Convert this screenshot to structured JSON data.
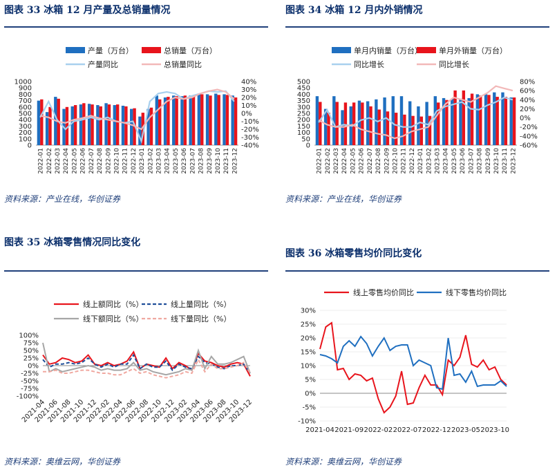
{
  "figures": [
    {
      "title": "图表  33    冰箱 12 月产量及总销量情况",
      "source": "资料来源：产业在线，华创证券"
    },
    {
      "title": "图表  34    冰箱 12 月内外销情况",
      "source": "资料来源：产业在线，华创证券"
    },
    {
      "title": "图表  35    冰箱零售情况同比变化",
      "source": "资料来源：奥维云网，华创证券"
    },
    {
      "title": "图表  36    冰箱零售均价同比变化",
      "source": "资料来源：奥维云网，华创证券"
    }
  ],
  "colors": {
    "blue": "#1f6fc0",
    "red": "#e8141c",
    "lightblue": "#a8d0ee",
    "pink": "#f2b8b8",
    "gray": "#a6a6a6",
    "navy": "#1f4e99",
    "pinkdash": "#f0a8a0"
  },
  "chart_data": [
    {
      "type": "bar",
      "title": "冰箱 12 月产量及总销量情况",
      "categories": [
        "2022-01",
        "2022-02",
        "2022-03",
        "2022-04",
        "2022-05",
        "2022-06",
        "2022-07",
        "2022-08",
        "2022-09",
        "2022-10",
        "2022-11",
        "2022-12",
        "2023-01",
        "2023-02",
        "2023-03",
        "2023-04",
        "2023-05",
        "2023-06",
        "2023-07",
        "2023-08",
        "2023-09",
        "2023-10",
        "2023-11",
        "2023-12"
      ],
      "bars": [
        {
          "name": "产量（万台）",
          "values": [
            700,
            520,
            760,
            570,
            610,
            640,
            650,
            630,
            660,
            630,
            620,
            570,
            450,
            570,
            780,
            750,
            780,
            770,
            780,
            800,
            800,
            810,
            800,
            780
          ],
          "color": "blue"
        },
        {
          "name": "总销量（万台）",
          "values": [
            720,
            600,
            730,
            600,
            630,
            660,
            640,
            610,
            640,
            640,
            610,
            580,
            510,
            590,
            720,
            760,
            770,
            780,
            770,
            800,
            780,
            790,
            790,
            750
          ],
          "color": "red"
        }
      ],
      "lines": [
        {
          "name": "产量同比",
          "values": [
            -5,
            15,
            -8,
            -20,
            -10,
            -8,
            -5,
            -8,
            -5,
            -10,
            -12,
            -10,
            -35,
            15,
            25,
            27,
            25,
            18,
            22,
            25,
            28,
            27,
            28,
            15
          ],
          "color": "lightblue"
        },
        {
          "name": "总销量同比",
          "values": [
            -3,
            -5,
            -10,
            -12,
            -8,
            -6,
            -3,
            -6,
            -8,
            -10,
            -12,
            -15,
            -20,
            -5,
            5,
            15,
            20,
            18,
            20,
            25,
            28,
            30,
            27,
            18
          ],
          "color": "pink"
        }
      ],
      "yleft": {
        "min": 0,
        "max": 1000,
        "ticks": [
          "0",
          "100",
          "200",
          "300",
          "400",
          "500",
          "600",
          "700",
          "800",
          "900",
          "1000"
        ]
      },
      "yright": {
        "min": -40,
        "max": 40,
        "ticks": [
          "-40%",
          "-30%",
          "-20%",
          "-10%",
          "0%",
          "10%",
          "20%",
          "30%",
          "40%"
        ]
      }
    },
    {
      "type": "bar",
      "title": "冰箱 12 月内外销情况",
      "categories": [
        "2022-01",
        "2022-02",
        "2022-03",
        "2022-04",
        "2022-05",
        "2022-06",
        "2022-07",
        "2022-08",
        "2022-09",
        "2022-10",
        "2022-11",
        "2022-12",
        "2023-01",
        "2023-02",
        "2023-03",
        "2023-04",
        "2023-05",
        "2023-06",
        "2023-07",
        "2023-08",
        "2023-09",
        "2023-10",
        "2023-11",
        "2023-12"
      ],
      "bars": [
        {
          "name": "单月内销量（万台）",
          "values": [
            385,
            285,
            385,
            275,
            305,
            350,
            345,
            360,
            375,
            385,
            385,
            345,
            305,
            340,
            385,
            370,
            365,
            365,
            370,
            400,
            400,
            415,
            415,
            375
          ],
          "color": "blue"
        },
        {
          "name": "单月外销量（万台）",
          "values": [
            340,
            255,
            340,
            335,
            335,
            335,
            305,
            280,
            265,
            255,
            240,
            230,
            225,
            230,
            335,
            355,
            430,
            430,
            405,
            390,
            395,
            380,
            380,
            375
          ],
          "color": "red"
        }
      ],
      "lines": [
        {
          "name": "同比增长",
          "values": [
            -10,
            18,
            -20,
            -15,
            -18,
            -5,
            0,
            -8,
            0,
            -15,
            -20,
            -20,
            -10,
            -15,
            15,
            25,
            30,
            35,
            20,
            18,
            28,
            35,
            45,
            40
          ],
          "color": "lightblue"
        },
        {
          "name": "同比增长",
          "values": [
            -5,
            -15,
            -20,
            -20,
            -15,
            -25,
            -30,
            -35,
            -38,
            -45,
            -40,
            -30,
            -25,
            -20,
            5,
            30,
            45,
            40,
            35,
            45,
            55,
            70,
            65,
            60
          ],
          "color": "pink"
        }
      ],
      "yleft": {
        "min": 0,
        "max": 500,
        "ticks": [
          "0",
          "50",
          "100",
          "150",
          "200",
          "250",
          "300",
          "350",
          "400",
          "450",
          "500"
        ]
      },
      "yright": {
        "min": -60,
        "max": 80,
        "ticks": [
          "-60%",
          "-40%",
          "-20%",
          "0%",
          "20%",
          "40%",
          "60%",
          "80%"
        ]
      }
    },
    {
      "type": "line",
      "title": "冰箱零售情况同比变化",
      "x": [
        "2021-04",
        "2021-05",
        "2021-06",
        "2021-07",
        "2021-08",
        "2021-09",
        "2021-10",
        "2021-11",
        "2021-12",
        "2022-01",
        "2022-02",
        "2022-03",
        "2022-04",
        "2022-05",
        "2022-06",
        "2022-07",
        "2022-08",
        "2022-09",
        "2022-10",
        "2022-11",
        "2022-12",
        "2023-01",
        "2023-02",
        "2023-03",
        "2023-04",
        "2023-05",
        "2023-06",
        "2023-07",
        "2023-08",
        "2023-09",
        "2023-10",
        "2023-11",
        "2023-12"
      ],
      "xticks": [
        "2021-04",
        "2021-06",
        "2021-08",
        "2021-10",
        "2021-12",
        "2022-02",
        "2022-04",
        "2022-06",
        "2022-08",
        "2022-10",
        "2022-12",
        "2023-02",
        "2023-04",
        "2023-06",
        "2023-08",
        "2023-10",
        "2023-12"
      ],
      "series": [
        {
          "name": "线上额同比（%）",
          "values": [
            35,
            5,
            10,
            25,
            20,
            10,
            15,
            35,
            5,
            0,
            10,
            0,
            5,
            15,
            45,
            -10,
            5,
            0,
            -5,
            25,
            -10,
            10,
            0,
            -15,
            40,
            15,
            10,
            0,
            -5,
            5,
            10,
            5,
            -35
          ],
          "color": "red",
          "dash": false
        },
        {
          "name": "线上量同比（%）",
          "values": [
            20,
            -5,
            5,
            5,
            10,
            5,
            10,
            25,
            5,
            -5,
            5,
            -5,
            5,
            5,
            35,
            -10,
            5,
            -5,
            -5,
            15,
            -15,
            5,
            -5,
            -10,
            30,
            10,
            5,
            -5,
            -10,
            0,
            0,
            5,
            -25
          ],
          "color": "navy",
          "dash": true
        },
        {
          "name": "线下额同比（%）",
          "values": [
            75,
            -20,
            -10,
            -20,
            -15,
            -10,
            -5,
            0,
            -5,
            -15,
            -10,
            -15,
            -15,
            -10,
            10,
            -15,
            -10,
            -20,
            -25,
            -30,
            -25,
            -20,
            -10,
            -15,
            50,
            -10,
            30,
            5,
            5,
            10,
            20,
            30,
            -25
          ],
          "color": "gray",
          "dash": false
        },
        {
          "name": "线下量同比（%）",
          "values": [
            -20,
            -20,
            -15,
            -25,
            -25,
            -20,
            -15,
            -15,
            -20,
            -25,
            -25,
            -30,
            -30,
            -20,
            -10,
            -25,
            -20,
            -30,
            -35,
            -40,
            -35,
            -30,
            -20,
            -25,
            20,
            -20,
            5,
            -10,
            -10,
            -5,
            0,
            10,
            -25
          ],
          "color": "pinkdash",
          "dash": true
        }
      ],
      "yticks": [
        "-100%",
        "-75%",
        "-50%",
        "-25%",
        "0%",
        "25%",
        "50%",
        "75%",
        "100%"
      ],
      "ylim": [
        -100,
        100
      ]
    },
    {
      "type": "line",
      "title": "冰箱零售均价同比变化",
      "x": [
        "2021-04",
        "2021-05",
        "2021-06",
        "2021-07",
        "2021-08",
        "2021-09",
        "2021-10",
        "2021-11",
        "2021-12",
        "2022-01",
        "2022-02",
        "2022-03",
        "2022-04",
        "2022-05",
        "2022-06",
        "2022-07",
        "2022-08",
        "2022-09",
        "2022-10",
        "2022-11",
        "2022-12",
        "2023-01",
        "2023-02",
        "2023-03",
        "2023-04",
        "2023-05",
        "2023-06",
        "2023-07",
        "2023-08",
        "2023-09",
        "2023-10",
        "2023-11",
        "2023-12"
      ],
      "xticks": [
        "2021-04",
        "2021-09",
        "2022-02",
        "2022-07",
        "2022-12",
        "2023-05",
        "2023-10"
      ],
      "series": [
        {
          "name": "线上零售均价同比",
          "values": [
            16,
            24,
            25.5,
            8.5,
            9,
            5,
            7,
            6.5,
            4.5,
            5.5,
            -2,
            -7,
            -5,
            -1,
            8,
            -4,
            -3.5,
            2,
            6.5,
            3,
            3,
            -0.5,
            12,
            10,
            13,
            21,
            10.5,
            9.5,
            12,
            8.5,
            9.5,
            5,
            3
          ],
          "color": "red"
        },
        {
          "name": "线下零售均价同比",
          "values": [
            14,
            13.5,
            12.5,
            11,
            17,
            19,
            17,
            20.5,
            18,
            13.5,
            17,
            20,
            15.5,
            17,
            17.5,
            17.5,
            10,
            12,
            11,
            10,
            2,
            1.5,
            20,
            6.5,
            7,
            4,
            8,
            2.5,
            3,
            3,
            3,
            4.5,
            2.5
          ],
          "color": "blue"
        }
      ],
      "yticks": [
        "-10%",
        "-5%",
        "0%",
        "5%",
        "10%",
        "15%",
        "20%",
        "25%",
        "30%"
      ],
      "ylim": [
        -10,
        30
      ]
    }
  ]
}
